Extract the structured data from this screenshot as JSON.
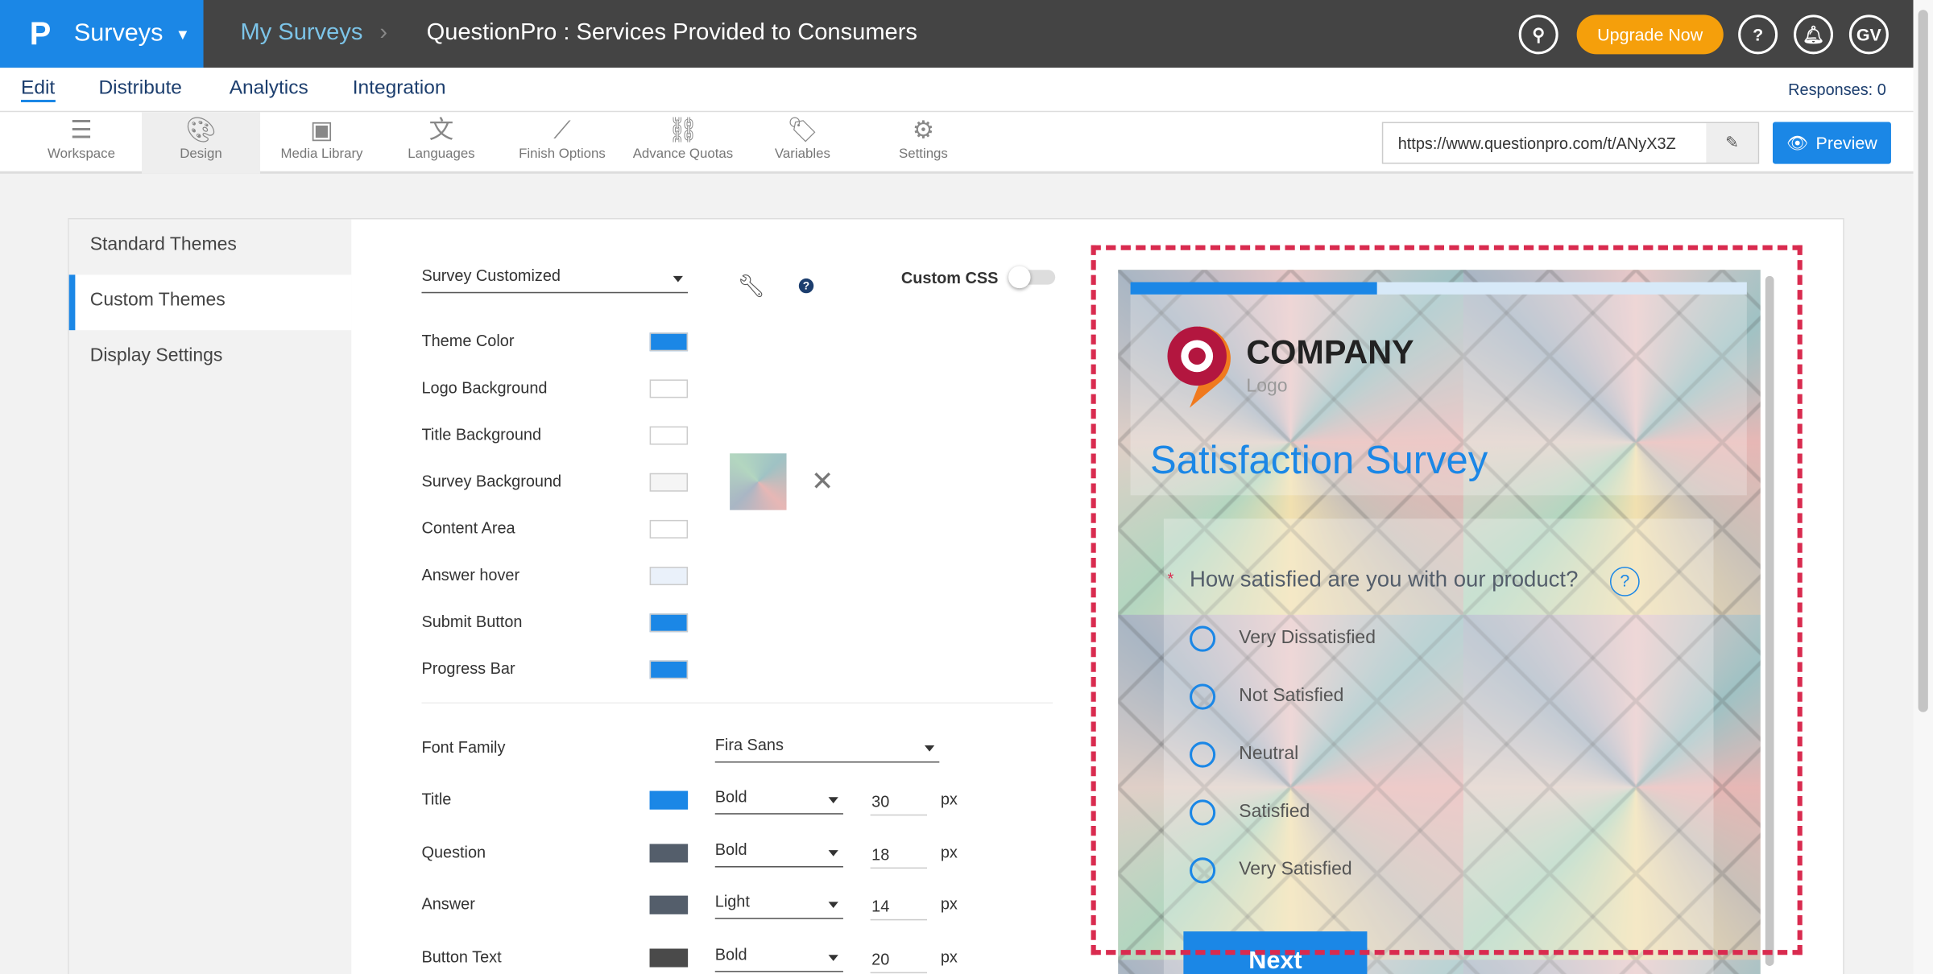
{
  "topbar": {
    "logo": "P",
    "product": "Surveys",
    "breadcrumb": "My Surveys",
    "survey_title": "QuestionPro : Services Provided to Consumers",
    "upgrade": "Upgrade Now",
    "help": "?",
    "avatar": "GV"
  },
  "nav": {
    "tabs": [
      "Edit",
      "Distribute",
      "Analytics",
      "Integration"
    ],
    "active": "Edit",
    "responses": "Responses: 0"
  },
  "tools": [
    {
      "label": "Workspace",
      "icon": "workspace-icon"
    },
    {
      "label": "Design",
      "icon": "palette-icon"
    },
    {
      "label": "Media Library",
      "icon": "image-icon"
    },
    {
      "label": "Languages",
      "icon": "translate-icon"
    },
    {
      "label": "Finish Options",
      "icon": "magic-wand-icon"
    },
    {
      "label": "Advance Quotas",
      "icon": "link-icon"
    },
    {
      "label": "Variables",
      "icon": "tag-icon"
    },
    {
      "label": "Settings",
      "icon": "gear-icon"
    }
  ],
  "url": "https://www.questionpro.com/t/ANyX3Z",
  "preview": "Preview",
  "sidebar": [
    "Standard Themes",
    "Custom Themes",
    "Display Settings"
  ],
  "theme": {
    "selected": "Survey Customized",
    "custom_css": "Custom CSS",
    "custom_css_on": false,
    "colors": [
      {
        "label": "Theme Color",
        "color": "#1b87e6"
      },
      {
        "label": "Logo Background",
        "color": "#ffffff"
      },
      {
        "label": "Title Background",
        "color": "#ffffff"
      },
      {
        "label": "Survey Background",
        "color": "#f5f5f5"
      },
      {
        "label": "Content Area",
        "color": "#ffffff"
      },
      {
        "label": "Answer hover",
        "color": "#eaf1fa"
      },
      {
        "label": "Submit Button",
        "color": "#1b87e6"
      },
      {
        "label": "Progress Bar",
        "color": "#1b87e6"
      }
    ],
    "font_family_label": "Font Family",
    "font_family": "Fira Sans",
    "fonts": [
      {
        "label": "Title",
        "color": "#1b87e6",
        "weight": "Bold",
        "size": "30"
      },
      {
        "label": "Question",
        "color": "#545e6b",
        "weight": "Bold",
        "size": "18"
      },
      {
        "label": "Answer",
        "color": "#545e6b",
        "weight": "Light",
        "size": "14"
      },
      {
        "label": "Button Text",
        "color": "#4a4a4a",
        "weight": "Bold",
        "size": "20"
      }
    ],
    "unit": "px"
  },
  "survey": {
    "company": "COMPANY",
    "logo_sub": "Logo",
    "title": "Satisfaction Survey",
    "required": "*",
    "question": "How satisfied are you with our product?",
    "answers": [
      "Very Dissatisfied",
      "Not Satisfied",
      "Neutral",
      "Satisfied",
      "Very Satisfied"
    ],
    "next": "Next",
    "progress_percent": 40
  }
}
